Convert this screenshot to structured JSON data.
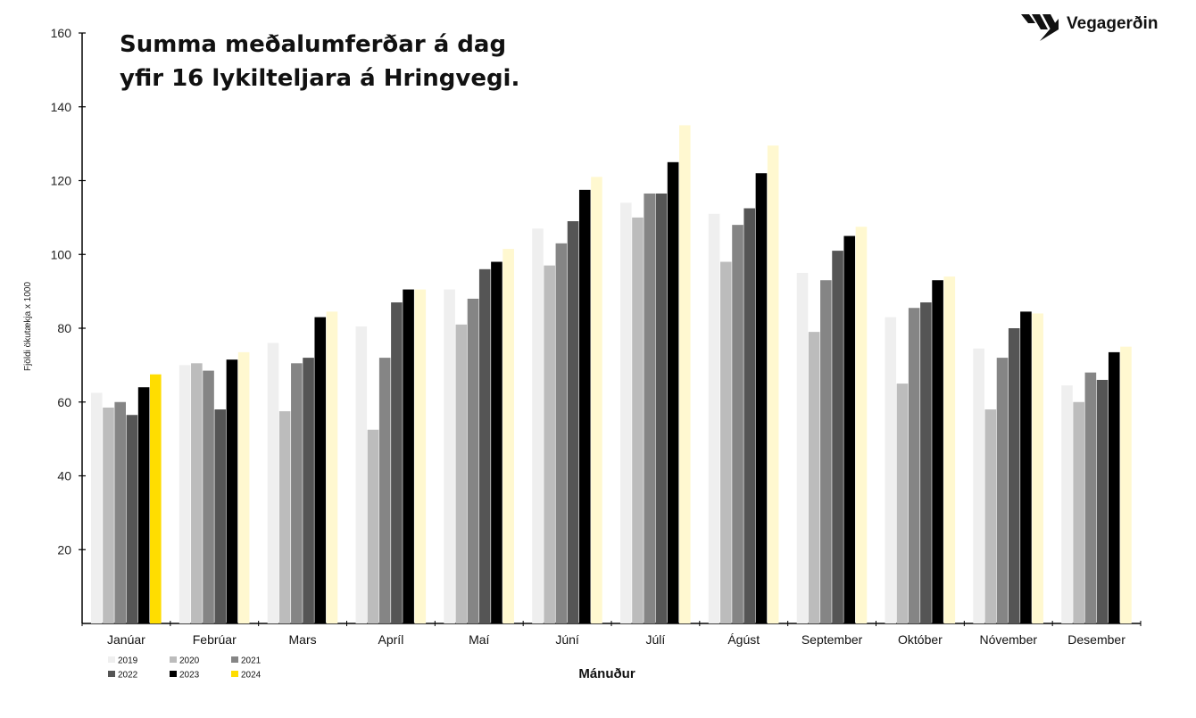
{
  "chart_data": {
    "type": "bar",
    "title_lines": [
      "Summa meðalumferðar á dag",
      "yfir 16 lykilteljara á Hringvegi."
    ],
    "xlabel": "Mánuður",
    "ylabel": "Fjöldi ökutækja x 1000",
    "ylim": [
      0,
      160
    ],
    "yticks": [
      20,
      40,
      60,
      80,
      100,
      120,
      140,
      160
    ],
    "grid": false,
    "legend_placement": "bottom-left",
    "categories": [
      "Janúar",
      "Febrúar",
      "Mars",
      "Apríl",
      "Maí",
      "Júní",
      "Júlí",
      "Ágúst",
      "September",
      "Október",
      "Nóvember",
      "Desember"
    ],
    "series": [
      {
        "name": "2019",
        "color": "#efefef",
        "values": [
          62.5,
          70,
          76,
          80.5,
          90.5,
          107,
          114,
          111,
          95,
          83,
          74.5,
          64.5
        ]
      },
      {
        "name": "2020",
        "color": "#bcbcbc",
        "values": [
          58.5,
          70.5,
          57.5,
          52.5,
          81,
          97,
          110,
          98,
          79,
          65,
          58,
          60
        ]
      },
      {
        "name": "2021",
        "color": "#858585",
        "values": [
          60,
          68.5,
          70.5,
          72,
          88,
          103,
          116.5,
          108,
          93,
          85.5,
          72,
          68
        ]
      },
      {
        "name": "2022",
        "color": "#555555",
        "values": [
          56.5,
          58,
          72,
          87,
          96,
          109,
          116.5,
          112.5,
          101,
          87,
          80,
          66
        ]
      },
      {
        "name": "2023",
        "color": "#000000",
        "values": [
          64,
          71.5,
          83,
          90.5,
          98,
          117.5,
          125,
          122,
          105,
          93,
          84.5,
          73.5
        ]
      },
      {
        "name": "2024",
        "color": "#fff8d0",
        "values": [
          67.5,
          73.5,
          84.5,
          90.5,
          101.5,
          121,
          135,
          129.5,
          107.5,
          94,
          84,
          75
        ]
      }
    ],
    "highlight": {
      "series": "2024",
      "category": "Janúar",
      "color": "#ffdd00"
    }
  },
  "logo": {
    "text": "Vegagerðin",
    "icon": "road-stripes-icon"
  }
}
